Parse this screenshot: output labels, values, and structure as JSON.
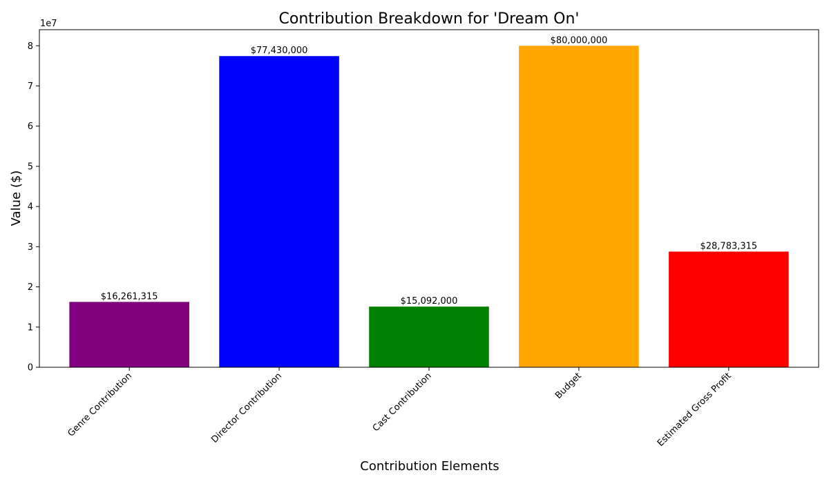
{
  "chart_data": {
    "type": "bar",
    "title": "Contribution Breakdown for 'Dream On'",
    "xlabel": "Contribution Elements",
    "ylabel": "Value ($)",
    "y_offset_label": "1e7",
    "ylim": [
      0,
      84000000
    ],
    "y_ticks": [
      0,
      10000000,
      20000000,
      30000000,
      40000000,
      50000000,
      60000000,
      70000000,
      80000000
    ],
    "y_tick_labels": [
      "0",
      "1",
      "2",
      "3",
      "4",
      "5",
      "6",
      "7",
      "8"
    ],
    "categories": [
      "Genre Contribution",
      "Director Contribution",
      "Cast Contribution",
      "Budget",
      "Estimated Gross Profit"
    ],
    "values": [
      16261315,
      77430000,
      15092000,
      80000000,
      28783315
    ],
    "value_labels": [
      "$16,261,315",
      "$77,430,000",
      "$15,092,000",
      "$80,000,000",
      "$28,783,315"
    ],
    "colors": [
      "#800080",
      "#0000ff",
      "#008000",
      "#ffa500",
      "#ff0000"
    ],
    "grid": false,
    "legend": "none",
    "x_tick_rotation_deg": 45
  }
}
